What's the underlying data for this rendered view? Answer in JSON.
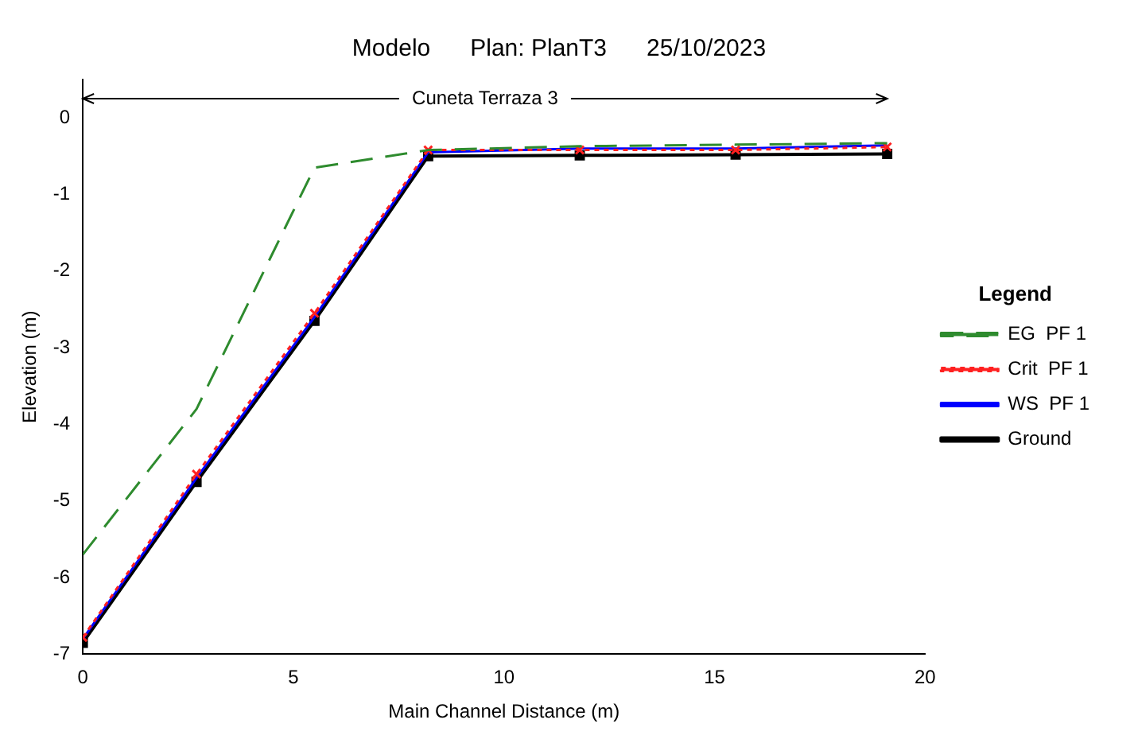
{
  "chart_data": {
    "type": "line",
    "title": "Modelo      Plan: PlanT3      25/10/2023",
    "xlabel": "Main Channel Distance (m)",
    "ylabel": "Elevation (m)",
    "legend_title": "Legend",
    "x": [
      0,
      2.7,
      5.5,
      8.2,
      11.8,
      15.5,
      19.1
    ],
    "series": [
      {
        "name": "EG  PF 1",
        "color": "#2e8b2e",
        "line_style": "dashed",
        "marker": "none",
        "values": [
          -5.7,
          -3.8,
          -0.65,
          -0.42,
          -0.37,
          -0.35,
          -0.33
        ]
      },
      {
        "name": "Crit  PF 1",
        "color": "#ff2020",
        "line_style": "dotted",
        "marker": "cross",
        "values": [
          -6.78,
          -4.65,
          -2.55,
          -0.42,
          -0.42,
          -0.42,
          -0.38
        ]
      },
      {
        "name": "WS  PF 1",
        "color": "#0000ff",
        "line_style": "solid",
        "marker": "none",
        "values": [
          -6.8,
          -4.7,
          -2.6,
          -0.45,
          -0.4,
          -0.4,
          -0.36
        ]
      },
      {
        "name": "Ground",
        "color": "#000000",
        "line_style": "solid",
        "marker": "square",
        "values": [
          -6.85,
          -4.75,
          -2.65,
          -0.5,
          -0.49,
          -0.48,
          -0.47
        ]
      }
    ],
    "xlim": [
      0,
      20
    ],
    "xticks": [
      0,
      5,
      10,
      15,
      20
    ],
    "ylim": [
      -7,
      0.5
    ],
    "yticks": [
      0,
      -1,
      -2,
      -3,
      -4,
      -5,
      -6,
      -7
    ],
    "grid": false,
    "legend": "right",
    "annotations": [
      "Cuneta Terraza 3"
    ]
  }
}
